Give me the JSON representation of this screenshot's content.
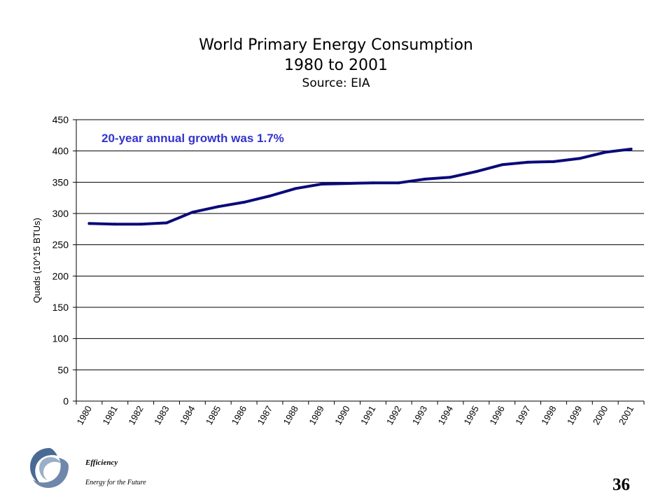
{
  "chart_data": {
    "type": "line",
    "title": "World Primary Energy Consumption",
    "subtitle": "1980 to 2001",
    "source": "Source: EIA",
    "xlabel": "",
    "ylabel": "Quads (10^15 BTUs)",
    "annotation": "20-year annual growth was 1.7%",
    "ylim": [
      0,
      450
    ],
    "yticks": [
      "0",
      "50",
      "100",
      "150",
      "200",
      "250",
      "300",
      "350",
      "400",
      "450"
    ],
    "categories": [
      "1980",
      "1981",
      "1982",
      "1983",
      "1984",
      "1985",
      "1986",
      "1987",
      "1988",
      "1989",
      "1990",
      "1991",
      "1992",
      "1993",
      "1994",
      "1995",
      "1996",
      "1997",
      "1998",
      "1999",
      "2000",
      "2001"
    ],
    "series": [
      {
        "name": "",
        "color": "#0a0a7a",
        "values": [
          284,
          283,
          283,
          285,
          302,
          311,
          318,
          328,
          340,
          347,
          348,
          349,
          349,
          355,
          358,
          367,
          378,
          382,
          383,
          388,
          398,
          403
        ]
      }
    ],
    "grid": true,
    "legend": "none"
  },
  "footer": {
    "line1": "Efficiency",
    "line2": "Energy for the Future",
    "page_number": "36"
  },
  "logo": {
    "icon": "swirl-logo-icon",
    "color": "#4a6a96"
  }
}
